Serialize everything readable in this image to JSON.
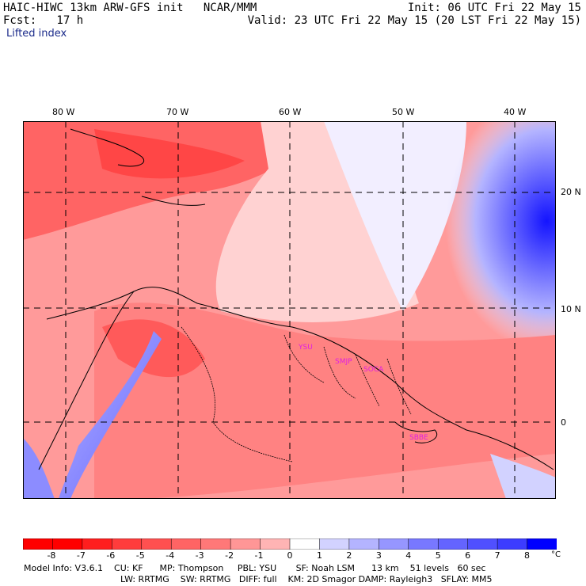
{
  "header": {
    "left_line1": "HAIC-HIWC 13km ARW-GFS init   NCAR/MMM",
    "left_line2": "Fcst:   17 h",
    "right_line1": "Init: 06 UTC Fri 22 May 15",
    "right_line2": "Valid: 23 UTC Fri 22 May 15 (20 LST Fri 22 May 15)",
    "field": "Lifted index"
  },
  "map": {
    "lon_labels": [
      "80 W",
      "70 W",
      "60 W",
      "50 W",
      "40 W"
    ],
    "lat_labels": [
      "20 N",
      "10 N",
      "0"
    ],
    "stations": [
      "YSU",
      "SMJP",
      "SOCA",
      "SBBE"
    ]
  },
  "colorbar": {
    "labels": [
      "-8",
      "-7",
      "-6",
      "-5",
      "-4",
      "-3",
      "-2",
      "-1",
      "0",
      "1",
      "2",
      "3",
      "4",
      "5",
      "6",
      "7",
      "8"
    ],
    "unit": "°C",
    "colors": [
      "#ff0000",
      "#ff1e1e",
      "#ff3c3c",
      "#ff5050",
      "#ff6464",
      "#ff7878",
      "#ff9696",
      "#ffb4b4",
      "#ffd2d2",
      "#d2d2ff",
      "#b4b4ff",
      "#9696ff",
      "#7878ff",
      "#6464ff",
      "#5050ff",
      "#3c3cff",
      "#0000ff"
    ]
  },
  "footer": {
    "line1": "Model Info: V3.6.1    CU: KF      MP: Thompson     PBL: YSU       SF: Noah LSM      13 km    51 levels   60 sec",
    "line2": "LW: RRTMG    SW: RRTMG   DIFF: full    KM: 2D Smagor DAMP: Rayleigh3   SFLAY: MM5"
  }
}
